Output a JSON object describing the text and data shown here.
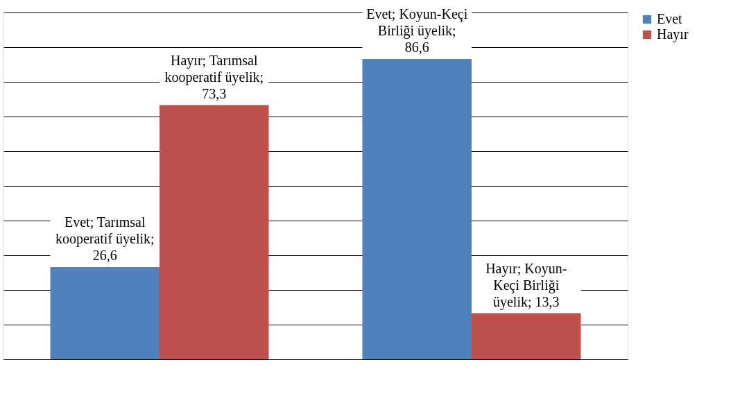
{
  "chart_data": {
    "type": "bar",
    "categories": [
      null,
      null
    ],
    "series": [
      {
        "name": "Evet",
        "color": "#4f81bd",
        "values": [
          26.6,
          86.6
        ],
        "value_labels": [
          "Evet; Tarımsal\nkooperatif üyelik;\n26,6",
          "Evet; Koyun-Keçi\nBirliği üyelik;\n86,6"
        ]
      },
      {
        "name": "Hayır",
        "color": "#c0504d",
        "values": [
          73.3,
          13.3
        ],
        "value_labels": [
          "Hayır; Tarımsal\nkooperatif üyelik;\n73,3",
          "Hayır; Koyun-\nKeçi Birliği\nüyelik; 13,3"
        ]
      }
    ],
    "ylim": [
      0,
      100
    ],
    "yticks": [
      {
        "value": 0,
        "label": null
      },
      {
        "value": 10,
        "label": null
      },
      {
        "value": 20,
        "label": null
      },
      {
        "value": 30,
        "label": null
      },
      {
        "value": 40,
        "label": null
      },
      {
        "value": 50,
        "label": null
      },
      {
        "value": 60,
        "label": null
      },
      {
        "value": 70,
        "label": null
      },
      {
        "value": 80,
        "label": null
      },
      {
        "value": 90,
        "label": null
      },
      {
        "value": 100,
        "label": null
      }
    ],
    "tick_labels": false,
    "grid": "y",
    "legend": "right"
  }
}
